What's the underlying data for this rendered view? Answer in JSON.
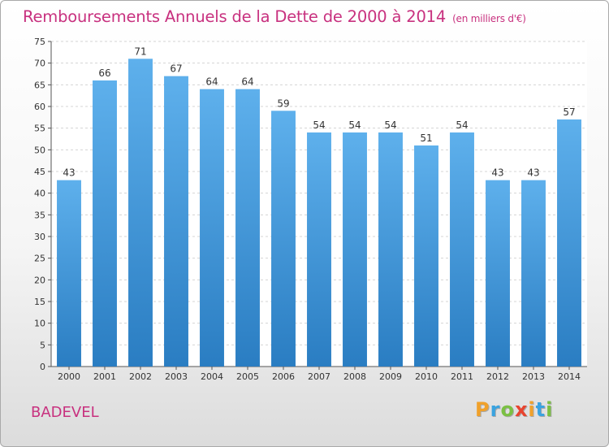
{
  "chart_data": {
    "type": "bar",
    "title": "Remboursements Annuels de la Dette de 2000 à 2014",
    "subtitle": "(en milliers d'€)",
    "categories": [
      "2000",
      "2001",
      "2002",
      "2003",
      "2004",
      "2005",
      "2006",
      "2007",
      "2008",
      "2009",
      "2010",
      "2011",
      "2012",
      "2013",
      "2014"
    ],
    "values": [
      43,
      66,
      71,
      67,
      64,
      64,
      59,
      54,
      54,
      54,
      51,
      54,
      43,
      43,
      57
    ],
    "ylim": [
      0,
      75
    ],
    "yticks": [
      0,
      5,
      10,
      15,
      20,
      25,
      30,
      35,
      40,
      45,
      50,
      55,
      60,
      65,
      70,
      75
    ],
    "grid": true,
    "bar_color": "#4a9fdf",
    "accent_color": "#c8317f"
  },
  "location": "BADEVEL",
  "brand": {
    "letters": [
      "P",
      "r",
      "o",
      "x",
      "i",
      "t",
      "i"
    ],
    "colors": [
      "#f0a12b",
      "#3aa3e0",
      "#7bc043",
      "#e8442f",
      "#f0a12b",
      "#3aa3e0",
      "#7bc043"
    ]
  }
}
